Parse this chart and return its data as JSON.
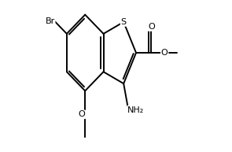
{
  "background_color": "#ffffff",
  "line_color": "#000000",
  "line_width": 1.4,
  "figure_size": [
    2.95,
    1.93
  ],
  "dpi": 100,
  "font_size": 8.0,
  "atoms": {
    "S_label": "S",
    "Br_label": "Br",
    "O_carbonyl": "O",
    "O_ester": "O",
    "O_methoxy": "O",
    "NH2_label": "NH₂"
  }
}
